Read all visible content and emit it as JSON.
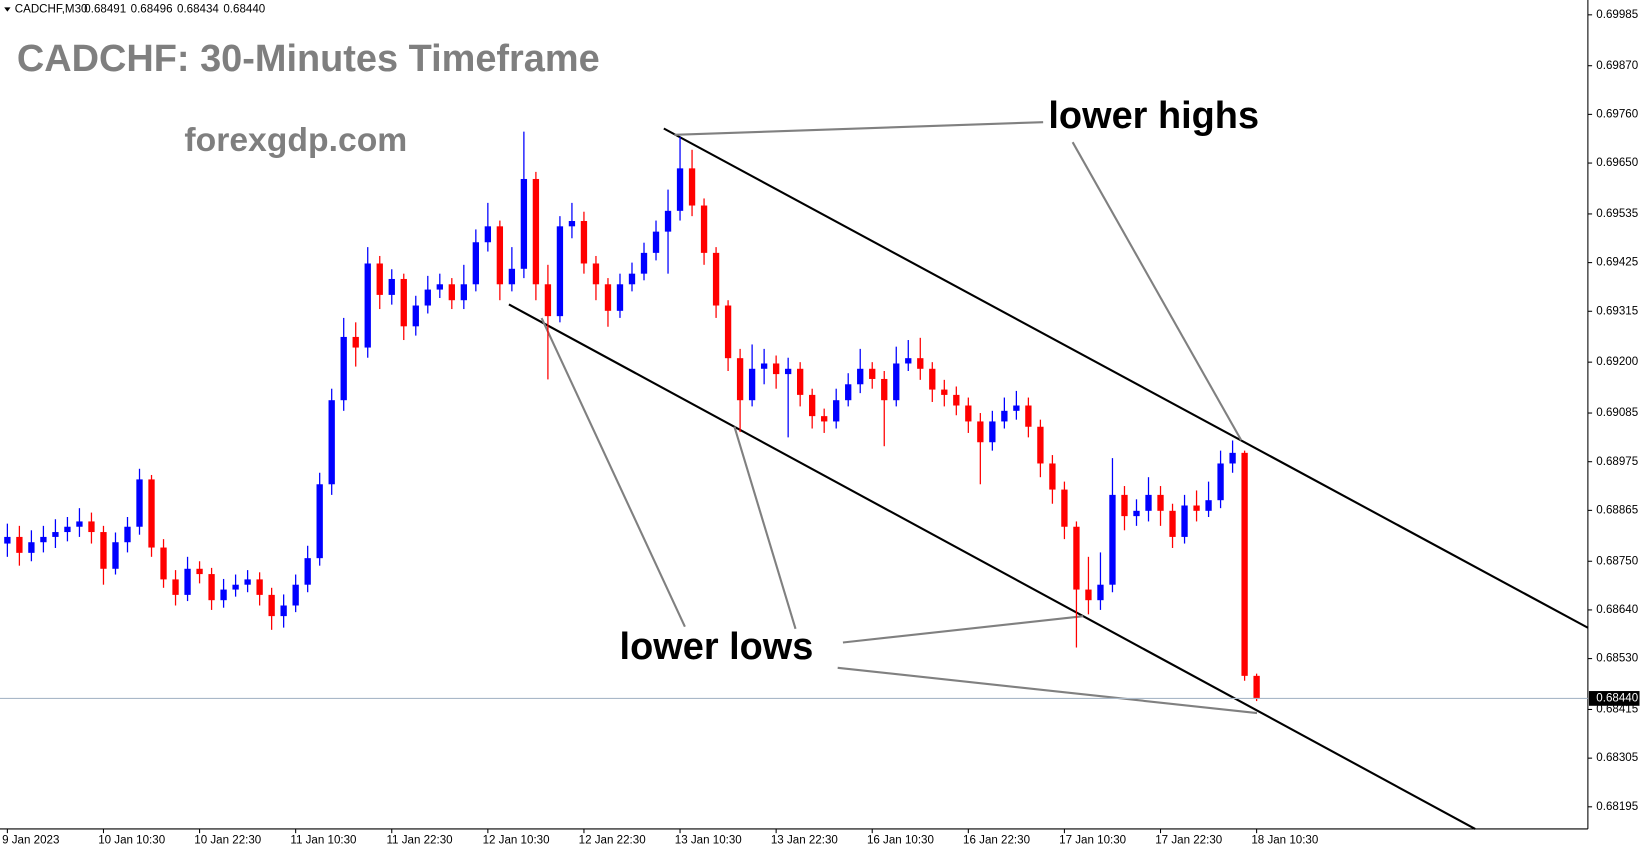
{
  "chart_data": {
    "type": "candlestick",
    "title": "CADCHF: 30-Minutes Timeframe",
    "watermark": "forexgdp.com",
    "symbol": "CADCHF,M30",
    "header_values": [
      0.68491,
      0.68496,
      0.68434,
      {
        "value": 0.6844,
        "label": "0.68440"
      }
    ],
    "annotations": [
      "lower highs",
      "lower lows"
    ],
    "up_color": "#0000ff",
    "down_color": "#ff0000",
    "categories": [
      "9 Jan 2023",
      null,
      null,
      null,
      null,
      null,
      null,
      null,
      "10 Jan 10:30",
      null,
      null,
      null,
      null,
      null,
      null,
      null,
      "10 Jan 22:30",
      null,
      null,
      null,
      null,
      null,
      null,
      null,
      "11 Jan 10:30",
      null,
      null,
      null,
      null,
      null,
      null,
      null,
      "11 Jan 22:30",
      null,
      null,
      null,
      null,
      null,
      null,
      null,
      "12 Jan 10:30",
      null,
      null,
      null,
      null,
      null,
      null,
      null,
      "12 Jan 22:30",
      null,
      null,
      null,
      null,
      null,
      null,
      null,
      "13 Jan 10:30",
      null,
      null,
      null,
      null,
      null,
      null,
      null,
      "13 Jan 22:30",
      null,
      null,
      null,
      null,
      null,
      null,
      null,
      "16 Jan 10:30",
      null,
      null,
      null,
      null,
      null,
      null,
      null,
      "16 Jan 22:30",
      null,
      null,
      null,
      null,
      null,
      null,
      null,
      "17 Jan 10:30",
      null,
      null,
      null,
      null,
      null,
      null,
      null,
      "17 Jan 22:30",
      null,
      null,
      null,
      null,
      null,
      null,
      null,
      "18 Jan 10:30"
    ],
    "open": [
      0.6879,
      0.68805,
      0.68769,
      0.68793,
      0.68805,
      0.68816,
      0.68828,
      0.6884,
      0.68816,
      0.68733,
      0.68793,
      0.68828,
      0.68935,
      0.68781,
      0.68709,
      0.68674,
      0.68733,
      0.68721,
      0.68662,
      0.68686,
      0.68697,
      0.68709,
      0.68674,
      0.68626,
      0.6865,
      0.68697,
      0.68757,
      0.68924,
      0.69114,
      0.69257,
      0.69233,
      0.69423,
      0.69352,
      0.69388,
      0.69281,
      0.69328,
      0.69364,
      0.69376,
      0.6934,
      0.69376,
      0.69471,
      0.69507,
      0.69376,
      0.69411,
      0.69614,
      0.69376,
      0.69304,
      0.69507,
      0.69519,
      0.69423,
      0.69376,
      0.69316,
      0.69376,
      0.694,
      0.69447,
      0.69495,
      0.69542,
      0.69638,
      0.69554,
      0.69447,
      0.69328,
      0.69209,
      0.69114,
      0.69185,
      0.69197,
      0.69173,
      0.69185,
      0.69126,
      0.69078,
      0.69066,
      0.69114,
      0.6915,
      0.69185,
      0.69162,
      0.69114,
      0.69197,
      0.69209,
      0.69185,
      0.69138,
      0.69126,
      0.69102,
      0.69066,
      0.69019,
      0.69066,
      0.6909,
      0.69102,
      0.69054,
      0.68971,
      0.68912,
      0.68828,
      0.68686,
      0.68662,
      0.68697,
      0.689,
      0.68852,
      0.68864,
      0.689,
      0.68864,
      0.68805,
      0.68876,
      0.68864,
      0.68888,
      0.68971,
      0.68995,
      0.68491
    ],
    "high": [
      0.68835,
      0.6883,
      0.6882,
      0.6883,
      0.68845,
      0.6885,
      0.6887,
      0.6886,
      0.6883,
      0.68815,
      0.6885,
      0.68959,
      0.68945,
      0.688,
      0.6873,
      0.6876,
      0.6875,
      0.68735,
      0.6871,
      0.6872,
      0.6873,
      0.68725,
      0.6869,
      0.68675,
      0.6872,
      0.68785,
      0.6895,
      0.6914,
      0.693,
      0.6929,
      0.6946,
      0.6944,
      0.6941,
      0.694,
      0.6935,
      0.69395,
      0.694,
      0.6939,
      0.6942,
      0.695,
      0.6956,
      0.6952,
      0.6946,
      0.69721,
      0.6963,
      0.6942,
      0.6953,
      0.6956,
      0.6954,
      0.6944,
      0.6939,
      0.694,
      0.69425,
      0.6947,
      0.6952,
      0.6959,
      0.69709,
      0.6968,
      0.6957,
      0.6946,
      0.6934,
      0.6923,
      0.6924,
      0.6923,
      0.69215,
      0.6921,
      0.692,
      0.6914,
      0.69095,
      0.6914,
      0.69175,
      0.6923,
      0.692,
      0.6918,
      0.69235,
      0.6925,
      0.69255,
      0.692,
      0.6916,
      0.69145,
      0.6912,
      0.69085,
      0.6909,
      0.6912,
      0.69135,
      0.6912,
      0.6907,
      0.6899,
      0.6893,
      0.6884,
      0.6876,
      0.6877,
      0.68983,
      0.6892,
      0.6889,
      0.6894,
      0.6892,
      0.6888,
      0.689,
      0.6891,
      0.6893,
      0.69,
      0.69023,
      0.69,
      0.68496
    ],
    "low": [
      0.6876,
      0.6874,
      0.6875,
      0.6877,
      0.6878,
      0.68795,
      0.68805,
      0.6879,
      0.68697,
      0.6872,
      0.6877,
      0.6881,
      0.6876,
      0.6869,
      0.6865,
      0.6866,
      0.687,
      0.6864,
      0.68645,
      0.6867,
      0.6868,
      0.6865,
      0.68595,
      0.686,
      0.68635,
      0.6868,
      0.6874,
      0.689,
      0.6909,
      0.6919,
      0.6921,
      0.6932,
      0.6933,
      0.6925,
      0.6926,
      0.6931,
      0.69345,
      0.6932,
      0.6932,
      0.6936,
      0.6945,
      0.6934,
      0.6936,
      0.6939,
      0.6934,
      0.69161,
      0.6929,
      0.6948,
      0.694,
      0.6934,
      0.6928,
      0.693,
      0.6936,
      0.69385,
      0.6943,
      0.694,
      0.6952,
      0.6953,
      0.6942,
      0.693,
      0.6918,
      0.69042,
      0.691,
      0.6915,
      0.6914,
      0.6903,
      0.691,
      0.6905,
      0.6904,
      0.6905,
      0.691,
      0.6913,
      0.6914,
      0.6901,
      0.691,
      0.6918,
      0.6916,
      0.6911,
      0.691,
      0.6908,
      0.6904,
      0.68924,
      0.69,
      0.6905,
      0.6907,
      0.6903,
      0.6894,
      0.6888,
      0.688,
      0.68555,
      0.6863,
      0.6864,
      0.6868,
      0.6882,
      0.6883,
      0.6884,
      0.6883,
      0.6878,
      0.6879,
      0.6884,
      0.6885,
      0.6887,
      0.6895,
      0.6848,
      0.68434
    ],
    "close": [
      0.68805,
      0.68769,
      0.68793,
      0.68805,
      0.68816,
      0.68828,
      0.6884,
      0.68816,
      0.68733,
      0.68793,
      0.68828,
      0.68935,
      0.68781,
      0.68709,
      0.68674,
      0.68733,
      0.68721,
      0.68662,
      0.68686,
      0.68697,
      0.68709,
      0.68674,
      0.68626,
      0.6865,
      0.68697,
      0.68757,
      0.68924,
      0.69114,
      0.69257,
      0.69233,
      0.69423,
      0.69352,
      0.69388,
      0.69281,
      0.69328,
      0.69364,
      0.69376,
      0.6934,
      0.69376,
      0.69471,
      0.69507,
      0.69376,
      0.69411,
      0.69614,
      0.69376,
      0.69304,
      0.69507,
      0.69519,
      0.69423,
      0.69376,
      0.69316,
      0.69376,
      0.694,
      0.69447,
      0.69495,
      0.69542,
      0.69638,
      0.69554,
      0.69447,
      0.69328,
      0.69209,
      0.69114,
      0.69185,
      0.69197,
      0.69173,
      0.69185,
      0.69126,
      0.69078,
      0.69066,
      0.69114,
      0.6915,
      0.69185,
      0.69162,
      0.69114,
      0.69197,
      0.69209,
      0.69185,
      0.69138,
      0.69126,
      0.69102,
      0.69066,
      0.69019,
      0.69066,
      0.6909,
      0.69102,
      0.69054,
      0.68971,
      0.68912,
      0.68828,
      0.68686,
      0.68662,
      0.68697,
      0.689,
      0.68852,
      0.68864,
      0.689,
      0.68864,
      0.68805,
      0.68876,
      0.68864,
      0.68888,
      0.68971,
      0.68995,
      0.68491,
      0.6844
    ],
    "current_price": {
      "value": 0.6844,
      "label": "0.68440"
    },
    "ylim": [
      0.68145,
      0.70009
    ],
    "yticks": [
      0.69985,
      {
        "value": 0.6987,
        "label": "0.69870"
      },
      {
        "value": 0.6976,
        "label": "0.69760"
      },
      {
        "value": 0.6965,
        "label": "0.69650"
      },
      0.69535,
      0.69425,
      0.69315,
      {
        "value": 0.692,
        "label": "0.69200"
      },
      0.69085,
      0.68975,
      0.68865,
      {
        "value": 0.6875,
        "label": "0.68750"
      },
      {
        "value": 0.6864,
        "label": "0.68640"
      },
      {
        "value": 0.6853,
        "label": "0.68530"
      },
      0.68415,
      0.68305,
      0.68195
    ]
  }
}
